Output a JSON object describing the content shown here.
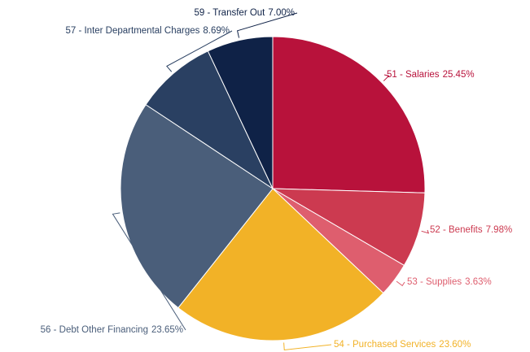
{
  "chart_data": {
    "type": "pie",
    "categories": [
      "51 - Salaries",
      "52 - Benefits",
      "53 - Supplies",
      "54 - Purchased Services",
      "56 - Debt Other Financing",
      "57 - Inter Departmental Charges",
      "59 - Transfer Out"
    ],
    "values": [
      25.45,
      7.98,
      3.63,
      23.6,
      23.65,
      8.69,
      7.0
    ],
    "value_labels": [
      "25.45%",
      "7.98%",
      "3.63%",
      "23.60%",
      "23.65%",
      "8.69%",
      "7.00%"
    ],
    "colors": [
      "#b8123b",
      "#cc3a50",
      "#de5e6e",
      "#f2b227",
      "#4a5e7a",
      "#2a4062",
      "#0f2247"
    ]
  }
}
